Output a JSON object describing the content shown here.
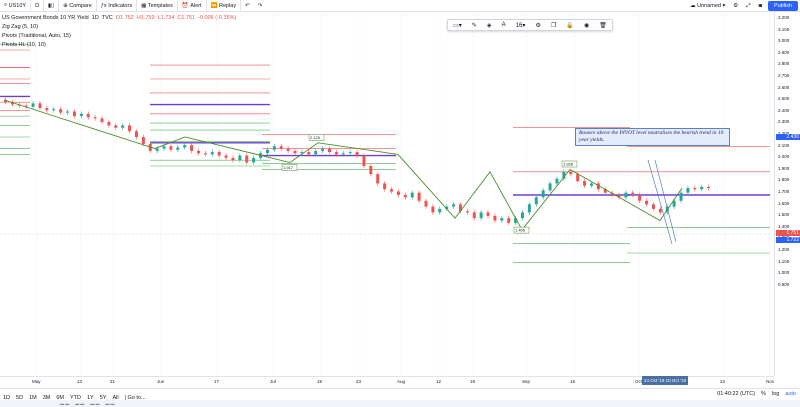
{
  "topbar": {
    "symbol": "US10Y",
    "interval": "D",
    "compare": "Compare",
    "indicators": "Indicators",
    "templates": "Templates",
    "alert": "Alert",
    "replay": "Replay",
    "layout_name": "Unnamed",
    "publish": "Publish"
  },
  "legend": {
    "title": "US Government Bonds 10 YR Yield",
    "interval": "1D",
    "source": "TVC",
    "o": "O1.752",
    "h": "H1.759",
    "l": "L1.734",
    "c": "C1.751",
    "change": "-0.006 (-0.35%)",
    "indicators": [
      "Zig Zag (5, 10)",
      "Pivots (Traditional, Auto, 15)",
      "Pivots HL (10, 10)"
    ]
  },
  "callout": {
    "text": "Bounce above the PIVOT level neutralises the bearish trend in 10 year yields."
  },
  "price_axis": {
    "labels": [
      "3.200",
      "3.100",
      "3.000",
      "2.900",
      "2.800",
      "2.700",
      "2.600",
      "2.500",
      "2.400",
      "2.300",
      "2.200",
      "2.100",
      "2.000",
      "1.900",
      "1.800",
      "1.700",
      "1.600",
      "1.500",
      "1.400",
      "1.300",
      "1.200",
      "1.100",
      "1.000",
      "0.900"
    ],
    "current_price": "1.751",
    "tag_price": "1.722",
    "tag_2": "2.430"
  },
  "time_axis": {
    "labels": [
      "May",
      "13",
      "21",
      "Jun",
      "17",
      "Jul",
      "15",
      "23",
      "Aug",
      "12",
      "19",
      "Sep",
      "16",
      "Oct",
      "22",
      "Nov"
    ],
    "highlight": "24 Oct '19  10 Oct '19"
  },
  "bottombar": {
    "ranges": [
      "1D",
      "5D",
      "1M",
      "3M",
      "6M",
      "YTD",
      "1Y",
      "5Y",
      "All"
    ],
    "goto": "Go to...",
    "time": "01:40:22 (UTC)",
    "percent": "%",
    "log": "log",
    "auto": "auto"
  },
  "chart_data": {
    "type": "candlestick",
    "title": "US Government Bonds 10 YR Yield",
    "pivot_levels": {
      "p1": {
        "P": 2.48,
        "R1": 2.7,
        "S1": 2.32
      },
      "p2": {
        "P": 2.15,
        "R1": 2.4,
        "S1": 1.95
      },
      "p3": {
        "P": 2.04,
        "R1": 2.1,
        "S1": 1.92
      },
      "p4": {
        "P": 1.7,
        "R1": 1.92,
        "S1": 1.42
      }
    },
    "zigzag_labels": [
      "2.125",
      "1.917",
      "1.928",
      "1.843",
      "1.406"
    ]
  }
}
